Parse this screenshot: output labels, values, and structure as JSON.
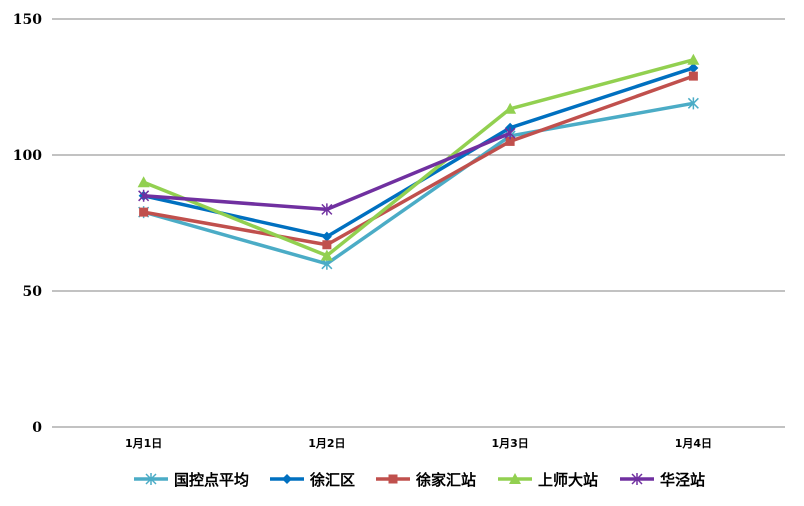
{
  "chart_data": {
    "type": "line",
    "title": "",
    "xlabel": "",
    "ylabel": "",
    "categories": [
      "1月1日",
      "1月2日",
      "1月3日",
      "1月4日"
    ],
    "ylim": [
      0,
      150
    ],
    "yticks": [
      "0",
      "50",
      "100",
      "150"
    ],
    "grid": true,
    "legend_position": "bottom",
    "series": [
      {
        "name": "国控点平均",
        "color": "#4BACC6",
        "marker": "star",
        "values": [
          79,
          60,
          107,
          119
        ]
      },
      {
        "name": "徐汇区",
        "color": "#0070C0",
        "marker": "diamond",
        "values": [
          85,
          70,
          110,
          132
        ]
      },
      {
        "name": "徐家汇站",
        "color": "#C0504D",
        "marker": "square",
        "values": [
          79,
          67,
          105,
          129
        ]
      },
      {
        "name": "上师大站",
        "color": "#92D050",
        "marker": "triangle",
        "values": [
          90,
          63,
          117,
          135
        ]
      },
      {
        "name": "华泾站",
        "color": "#7030A0",
        "marker": "star",
        "values": [
          85,
          80,
          108,
          null
        ]
      }
    ]
  }
}
